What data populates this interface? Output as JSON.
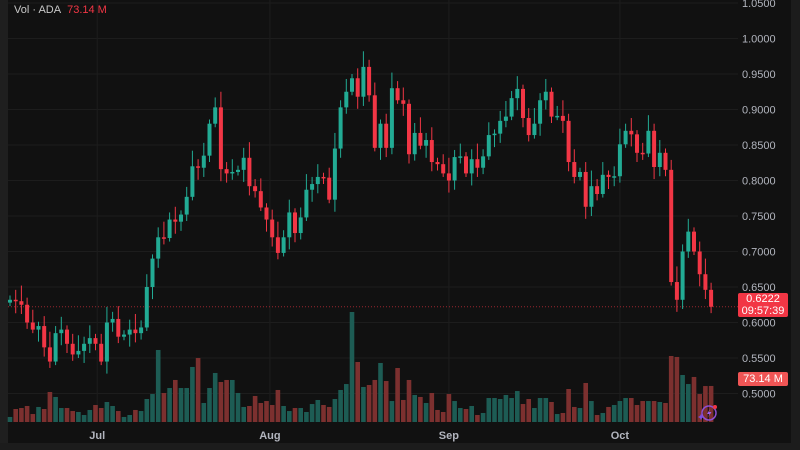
{
  "legend": {
    "label": "Vol · ADA",
    "value": "73.14 M"
  },
  "price_tag": {
    "price": "0.6222",
    "countdown": "09:57:39"
  },
  "volume_tag": "73.14 M",
  "colors": {
    "up": "#22ab94",
    "down": "#f23645",
    "vol_up": "#1d5c54",
    "vol_down": "#7c302f",
    "background": "#111111",
    "grid": "#1d1d1d"
  },
  "chart_data": {
    "type": "candlestick",
    "title": "ADA",
    "y_ticks": [
      "1.0500",
      "1.0000",
      "0.9500",
      "0.9000",
      "0.8500",
      "0.8000",
      "0.7500",
      "0.7000",
      "0.6500",
      "0.6000",
      "0.5500",
      "0.5000"
    ],
    "y_tick_values": [
      1.05,
      1.0,
      0.95,
      0.9,
      0.85,
      0.8,
      0.75,
      0.7,
      0.65,
      0.6,
      0.55,
      0.5
    ],
    "ylim": [
      0.5,
      1.05
    ],
    "x_ticks": [
      {
        "label": "Jul",
        "index": 15.3
      },
      {
        "label": "Aug",
        "index": 45.6
      },
      {
        "label": "Sep",
        "index": 77
      },
      {
        "label": "Oct",
        "index": 107
      }
    ],
    "last_price": 0.6222,
    "closes": [
      0.632,
      0.63,
      0.625,
      0.6,
      0.59,
      0.595,
      0.565,
      0.545,
      0.585,
      0.59,
      0.57,
      0.555,
      0.56,
      0.57,
      0.578,
      0.57,
      0.545,
      0.6,
      0.605,
      0.58,
      0.583,
      0.59,
      0.585,
      0.593,
      0.65,
      0.69,
      0.72,
      0.719,
      0.745,
      0.742,
      0.752,
      0.777,
      0.82,
      0.818,
      0.835,
      0.88,
      0.903,
      0.816,
      0.81,
      0.812,
      0.815,
      0.832,
      0.792,
      0.785,
      0.762,
      0.745,
      0.72,
      0.698,
      0.72,
      0.755,
      0.726,
      0.748,
      0.787,
      0.795,
      0.805,
      0.804,
      0.773,
      0.845,
      0.903,
      0.925,
      0.944,
      0.918,
      0.96,
      0.92,
      0.846,
      0.88,
      0.846,
      0.93,
      0.913,
      0.908,
      0.837,
      0.867,
      0.849,
      0.857,
      0.826,
      0.823,
      0.81,
      0.8,
      0.833,
      0.834,
      0.81,
      0.83,
      0.818,
      0.834,
      0.864,
      0.866,
      0.884,
      0.89,
      0.916,
      0.929,
      0.888,
      0.864,
      0.88,
      0.913,
      0.925,
      0.89,
      0.891,
      0.884,
      0.826,
      0.805,
      0.812,
      0.763,
      0.792,
      0.781,
      0.808,
      0.805,
      0.806,
      0.851,
      0.87,
      0.865,
      0.839,
      0.838,
      0.87,
      0.819,
      0.839,
      0.815,
      0.657,
      0.632,
      0.7,
      0.728,
      0.7,
      0.668,
      0.646,
      0.6222
    ],
    "volumes_m": [
      10.2,
      26.4,
      28.4,
      32.5,
      16.2,
      30.5,
      26.4,
      60.9,
      50.8,
      28.4,
      28.4,
      22.3,
      20.3,
      14.2,
      24.4,
      34.5,
      28.4,
      40.6,
      32.5,
      22.3,
      10.2,
      14.2,
      24.4,
      22.3,
      46.7,
      56.8,
      146.2,
      58.9,
      69.0,
      85.3,
      69.0,
      69.0,
      111.7,
      129.9,
      38.6,
      69.0,
      99.5,
      81.2,
      85.3,
      85.3,
      58.9,
      30.5,
      32.5,
      52.8,
      38.6,
      42.6,
      34.5,
      65.0,
      32.5,
      22.3,
      28.4,
      28.4,
      20.3,
      36.5,
      44.7,
      34.5,
      30.5,
      46.7,
      65.0,
      77.1,
      223.3,
      121.8,
      71.1,
      75.1,
      85.3,
      119.8,
      83.2,
      42.6,
      109.6,
      44.7,
      85.3,
      54.8,
      50.8,
      38.6,
      58.9,
      24.4,
      20.3,
      56.8,
      42.6,
      28.4,
      26.4,
      32.5,
      14.2,
      18.3,
      48.7,
      48.7,
      46.7,
      54.8,
      48.7,
      62.9,
      36.5,
      46.7,
      28.4,
      48.7,
      48.7,
      40.6,
      16.2,
      18.3,
      67.0,
      30.5,
      28.4,
      79.2,
      42.6,
      14.2,
      18.3,
      30.5,
      34.5,
      42.6,
      48.7,
      48.7,
      34.5,
      42.6,
      42.6,
      42.6,
      40.6,
      38.6,
      134.0,
      132.0,
      95.4,
      77.1,
      91.4,
      56.8,
      73.0,
      73.14
    ]
  }
}
